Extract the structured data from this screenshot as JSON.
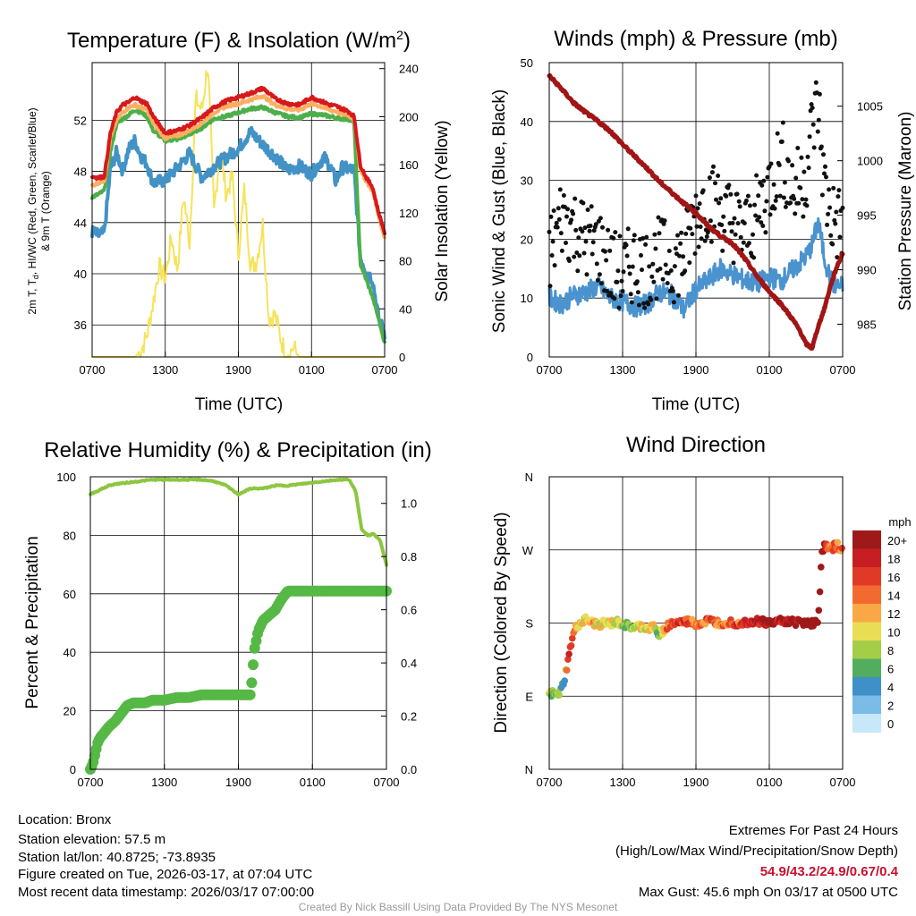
{
  "chart_data": [
    {
      "id": "temp",
      "type": "line",
      "title": "Temperature (F) & Insolation (W/m",
      "title_sup": "2",
      "title_end": ")",
      "ylabel_line1": "2m T, T",
      "ylabel_sub": "d",
      "ylabel_line1_end": ", HI/WC (Red, Green, Scarlet/Blue)",
      "ylabel_line2": "& 9m T (Orange)",
      "y2label": "Solar Insolation (Yellow)",
      "xlabel": "Time (UTC)",
      "xticks": [
        "0700",
        "1300",
        "1900",
        "0100",
        "0700"
      ],
      "ylim": [
        33.5,
        56.5
      ],
      "yticks": [
        "36",
        "40",
        "44",
        "48",
        "52"
      ],
      "y2lim": [
        0,
        245
      ],
      "y2ticks": [
        "0",
        "40",
        "80",
        "120",
        "160",
        "200",
        "240"
      ],
      "colors": {
        "t2m": "#d7191c",
        "t9m": "#fdae61",
        "td": "#4daf4a",
        "wc": "#4292c6",
        "solar": "#f7e35a"
      },
      "series": [
        {
          "name": "2m T",
          "key": "t2m",
          "t": [
            0,
            0.5,
            1,
            1.5,
            2,
            2.5,
            3,
            3.5,
            4,
            4.5,
            5,
            6,
            7,
            8,
            9,
            10,
            11,
            12,
            13,
            14,
            15,
            16,
            17,
            18,
            19,
            19.5,
            20,
            20.5,
            21,
            21.5,
            22,
            22.5,
            23,
            23.5,
            24
          ],
          "v": [
            47.6,
            47.5,
            47.6,
            51,
            52.6,
            53.2,
            53.4,
            53.8,
            53.5,
            53.3,
            52.3,
            51,
            51.2,
            51.6,
            52.2,
            53,
            53.5,
            53.8,
            54.1,
            54.5,
            53.7,
            53.3,
            53.2,
            53.8,
            53.4,
            53.2,
            53.1,
            52.9,
            52.7,
            52.3,
            48.5,
            47.5,
            46.8,
            44.8,
            43.2
          ]
        },
        {
          "name": "9m T",
          "key": "t9m",
          "t": [
            0,
            0.5,
            1,
            1.5,
            2,
            2.5,
            3,
            3.5,
            4,
            4.5,
            5,
            6,
            7,
            8,
            9,
            10,
            11,
            12,
            13,
            14,
            15,
            16,
            17,
            18,
            19,
            19.5,
            20,
            20.5,
            21,
            21.5,
            22,
            22.5,
            23,
            23.5,
            24
          ],
          "v": [
            46.9,
            47.1,
            47.3,
            50.6,
            52,
            52.6,
            53,
            53.2,
            53,
            52.8,
            51.8,
            50.6,
            50.8,
            51.2,
            51.8,
            52.6,
            53.1,
            53.3,
            53.6,
            53.9,
            53.2,
            52.9,
            52.8,
            53.3,
            53,
            52.8,
            52.7,
            52.5,
            52.4,
            52.1,
            48.2,
            47.2,
            46.5,
            44.6,
            42.8
          ]
        },
        {
          "name": "Td",
          "key": "td",
          "t": [
            0,
            0.5,
            1,
            1.5,
            2,
            2.5,
            3,
            3.5,
            4,
            4.5,
            5,
            6,
            7,
            8,
            9,
            10,
            11,
            12,
            13,
            14,
            15,
            16,
            17,
            18,
            19,
            19.5,
            20,
            20.5,
            21,
            21.5,
            22,
            22.5,
            23,
            23.5,
            24
          ],
          "v": [
            46,
            46.2,
            46.5,
            49.5,
            51.7,
            52.1,
            52.4,
            52.8,
            52.6,
            52.3,
            51.2,
            50.4,
            50.5,
            50.9,
            51.4,
            52.1,
            52.3,
            52.6,
            52.9,
            53,
            52.6,
            52.3,
            52.2,
            52.5,
            52.4,
            52.3,
            52.2,
            52.1,
            52.1,
            51.8,
            40.8,
            39.5,
            38.2,
            36.5,
            34.6
          ]
        },
        {
          "name": "HI/WC",
          "key": "wc",
          "t": [
            0,
            0.5,
            1,
            1.5,
            2,
            2.5,
            3,
            3.5,
            4,
            4.5,
            5,
            6,
            7,
            8,
            9,
            10,
            11,
            12,
            13,
            14,
            15,
            16,
            17,
            18,
            19,
            19.5,
            20,
            20.5,
            21,
            21.5,
            22,
            22.5,
            23,
            23.5,
            24
          ],
          "v": [
            43.3,
            43,
            43.2,
            48.2,
            49.5,
            48.1,
            49.7,
            50.4,
            49.2,
            48.6,
            47.1,
            47.3,
            48.3,
            49.4,
            47.5,
            48.4,
            49.1,
            49.8,
            51.1,
            50.1,
            49.2,
            48.1,
            48.4,
            47.8,
            49.1,
            48.5,
            47.2,
            48.3,
            48.2,
            48.1,
            41.3,
            40.2,
            39.6,
            36.5,
            35.4
          ]
        },
        {
          "name": "Solar Insolation",
          "key": "solar",
          "axis": "y2",
          "t": [
            0,
            3.5,
            4,
            4.5,
            5,
            5.5,
            6,
            6.5,
            7,
            7.5,
            8,
            8.5,
            9,
            9.5,
            10,
            10.5,
            11,
            11.5,
            12,
            12.5,
            13,
            13.5,
            14,
            14.5,
            15,
            15.5,
            16,
            16.5,
            17,
            24
          ],
          "v": [
            0,
            0,
            5,
            18,
            45,
            75,
            65,
            100,
            72,
            135,
            95,
            215,
            205,
            245,
            120,
            175,
            135,
            150,
            85,
            140,
            75,
            80,
            110,
            32,
            35,
            14,
            0,
            8,
            0,
            0
          ]
        }
      ]
    },
    {
      "id": "wind",
      "type": "scatter",
      "title": "Winds (mph) & Pressure (mb)",
      "ylabel": "Sonic Wind & Gust (Blue, Black)",
      "y2label": "Station Pressure (Maroon)",
      "xlabel": "Time (UTC)",
      "xticks": [
        "0700",
        "1300",
        "1900",
        "0100",
        "0700"
      ],
      "ylim": [
        0,
        50
      ],
      "yticks": [
        "0",
        "10",
        "20",
        "30",
        "40",
        "50"
      ],
      "y2lim": [
        982,
        1009
      ],
      "y2ticks": [
        "985",
        "990",
        "995",
        "1000",
        "1005"
      ],
      "colors": {
        "wind": "#4a93cf",
        "gust": "#111111",
        "pressure": "#a01515"
      },
      "series": [
        {
          "name": "Sonic Wind",
          "key": "wind",
          "t": [
            0,
            1,
            2,
            3,
            4,
            5,
            6,
            7,
            8,
            9,
            10,
            11,
            12,
            13,
            14,
            15,
            16,
            17,
            18,
            19,
            20,
            21,
            21.5,
            22,
            22.5,
            23,
            23.5,
            24
          ],
          "v": [
            10,
            9,
            10.5,
            11,
            12,
            10,
            9.5,
            8.5,
            9,
            11,
            10.5,
            8,
            11.5,
            13,
            15,
            14,
            13,
            12.5,
            13.5,
            13,
            15,
            17,
            19,
            23,
            17,
            13,
            12,
            12
          ]
        },
        {
          "name": "Gust",
          "key": "gust",
          "t": [
            0,
            1,
            2,
            3,
            4,
            5,
            6,
            7,
            8,
            9,
            10,
            11,
            12,
            13,
            14,
            15,
            16,
            17,
            18,
            19,
            20,
            21,
            21.5,
            22,
            22.5,
            23,
            23.5,
            24
          ],
          "v": [
            17,
            24,
            22,
            20,
            19,
            15,
            14,
            16,
            15,
            17,
            16,
            17,
            24,
            27,
            25,
            23,
            21,
            24,
            29,
            34,
            28,
            31,
            39,
            43,
            29,
            24,
            23,
            22
          ]
        },
        {
          "name": "Station Pressure",
          "key": "pressure",
          "axis": "y2",
          "t": [
            0,
            1,
            2,
            3,
            4,
            5,
            6,
            7,
            8,
            9,
            10,
            11,
            12,
            13,
            14,
            15,
            16,
            17,
            18,
            19,
            20,
            20.5,
            21,
            21.5,
            22,
            22.5,
            23,
            23.5,
            24
          ],
          "v": [
            1007.8,
            1006.6,
            1005.3,
            1004.4,
            1003.6,
            1002.7,
            1001.5,
            1000.4,
            999.3,
            998.1,
            997.1,
            996.1,
            995.2,
            994,
            993.1,
            992.4,
            991,
            989.4,
            988,
            986.8,
            985.3,
            984.4,
            983.2,
            982.8,
            984.8,
            986.4,
            988.5,
            990.2,
            991.5
          ]
        }
      ]
    },
    {
      "id": "rh",
      "type": "line",
      "title": "Relative Humidity (%) & Precipitation (in)",
      "ylabel": "Percent & Precipitation",
      "xticks": [
        "0700",
        "1300",
        "1900",
        "0100",
        "0700"
      ],
      "ylim": [
        0,
        100
      ],
      "yticks": [
        "0",
        "20",
        "40",
        "60",
        "80",
        "100"
      ],
      "y2lim": [
        0,
        1.1
      ],
      "y2ticks": [
        "0.0",
        "0.2",
        "0.4",
        "0.6",
        "0.8",
        "1.0"
      ],
      "colors": {
        "rh": "#8dc63f",
        "precip": "#56b845"
      },
      "series": [
        {
          "name": "Relative Humidity",
          "key": "rh",
          "t": [
            0,
            0.5,
            1,
            1.5,
            2,
            3,
            4,
            5,
            6,
            7,
            8,
            9,
            10,
            11,
            12,
            13,
            14,
            15,
            16,
            17,
            18,
            19,
            20,
            21,
            21.5,
            22,
            22.5,
            23,
            23.5,
            24
          ],
          "v": [
            94,
            95,
            96,
            97,
            97.5,
            98,
            98.5,
            99,
            99,
            99,
            99,
            99,
            98.5,
            97,
            94,
            96,
            96,
            97,
            97,
            97.5,
            98,
            98.5,
            99,
            99,
            95,
            82,
            80,
            80.5,
            78,
            70
          ]
        },
        {
          "name": "Precipitation",
          "key": "precip",
          "t": [
            0,
            0.2,
            0.4,
            0.6,
            0.8,
            1,
            1.5,
            2,
            2.5,
            3,
            3.5,
            4,
            4.5,
            5,
            6,
            7,
            8,
            9,
            10,
            11,
            12,
            12.5,
            13,
            13.3,
            13.6,
            14,
            14.5,
            15,
            15.5,
            16,
            16.5,
            24
          ],
          "v": [
            0,
            0.02,
            0.06,
            0.1,
            0.12,
            0.13,
            0.16,
            0.18,
            0.21,
            0.24,
            0.25,
            0.25,
            0.25,
            0.26,
            0.26,
            0.27,
            0.27,
            0.28,
            0.28,
            0.28,
            0.28,
            0.28,
            0.28,
            0.45,
            0.52,
            0.56,
            0.58,
            0.6,
            0.64,
            0.67,
            0.67,
            0.67
          ]
        }
      ]
    },
    {
      "id": "dir",
      "type": "scatter",
      "title": "Wind Direction",
      "ylabel": "Direction (Colored By Speed)",
      "xticks": [
        "0700",
        "1300",
        "1900",
        "0100",
        "0700"
      ],
      "ylim": [
        0,
        360
      ],
      "yticks": [
        "N",
        "E",
        "S",
        "W",
        "N"
      ],
      "legend_title": "mph",
      "legend_labels": [
        "20+",
        "18",
        "16",
        "14",
        "12",
        "10",
        "8",
        "6",
        "4",
        "2",
        "0"
      ],
      "legend_colors": [
        "#9e1a1a",
        "#c61e22",
        "#e03a27",
        "#f36a30",
        "#f9a845",
        "#e9dd55",
        "#a4cd48",
        "#52ad5f",
        "#3f8fc9",
        "#7bbbe8",
        "#c6e8f8"
      ],
      "series": [
        {
          "name": "Direction",
          "t": [
            0,
            0.3,
            0.6,
            0.9,
            1.2,
            1.5,
            1.8,
            2.1,
            2.4,
            2.7,
            3,
            3.5,
            4,
            4.5,
            5,
            5.5,
            6,
            6.5,
            7,
            7.5,
            8,
            8.5,
            9,
            9.5,
            10,
            10.5,
            11,
            11.5,
            12,
            12.5,
            13,
            13.5,
            14,
            14.5,
            15,
            15.5,
            16,
            16.5,
            17,
            17.5,
            18,
            18.5,
            19,
            19.5,
            20,
            20.5,
            21,
            21.5,
            22,
            22.3,
            22.6,
            22.9,
            23.2,
            23.5,
            23.8,
            24
          ],
          "v": [
            92,
            93,
            91,
            95,
            108,
            130,
            155,
            172,
            178,
            181,
            184,
            180,
            178,
            180,
            179,
            181,
            178,
            176,
            174,
            176,
            173,
            175,
            165,
            175,
            179,
            181,
            181,
            182,
            179,
            180,
            183,
            181,
            180,
            182,
            181,
            180,
            181,
            183,
            182,
            182,
            180,
            181,
            184,
            182,
            181,
            182,
            181,
            180,
            180,
            270,
            275,
            271,
            273,
            276,
            272,
            270
          ],
          "speed": [
            8,
            8,
            9,
            6,
            4,
            14,
            16,
            12,
            12,
            11,
            10,
            13,
            10,
            10,
            11,
            9,
            8,
            8,
            7,
            10,
            9,
            12,
            5,
            14,
            15,
            16,
            16,
            15,
            13,
            14,
            15,
            16,
            13,
            14,
            15,
            15,
            16,
            17,
            18,
            19,
            20,
            20,
            18,
            19,
            22,
            20,
            21,
            23,
            22,
            22,
            18,
            12,
            15,
            14,
            16,
            13
          ]
        }
      ]
    }
  ],
  "footer": {
    "location": "Location: Bronx",
    "elevation": "Station elevation: 57.5 m",
    "latlon": "Station lat/lon: 40.8725; -73.8935",
    "created": "Figure created on Tue, 2026-03-17, at 07:04 UTC",
    "recent": "Most recent data timestamp: 2026/03/17 07:00:00",
    "extremes_title": "Extremes For Past 24 Hours",
    "extremes_sub": "(High/Low/Max Wind/Precipitation/Snow Depth)",
    "extremes_values": "54.9/43.2/24.9/0.67/0.4",
    "max_gust": "Max Gust: 45.6 mph On 03/17 at 0500 UTC",
    "credit": "Created By Nick Bassill Using Data Provided By The NYS Mesonet"
  }
}
